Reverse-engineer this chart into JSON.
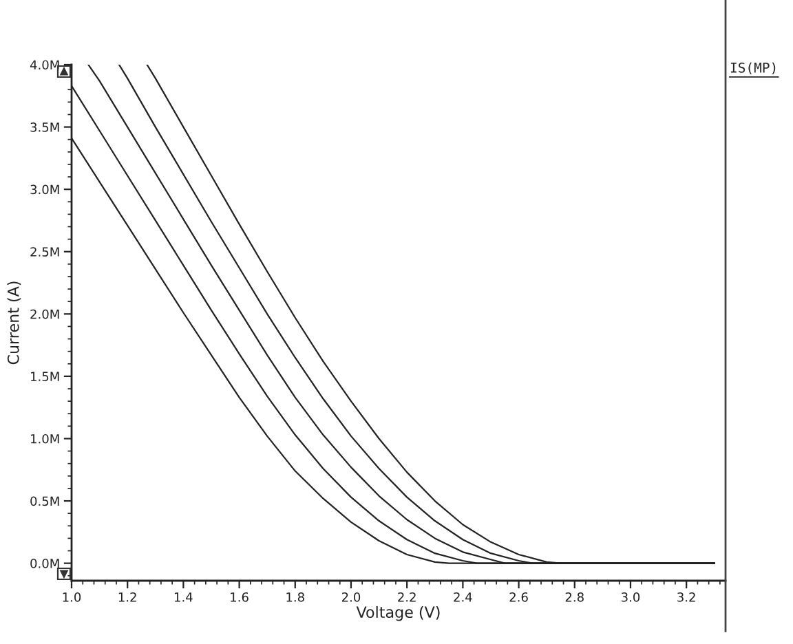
{
  "chart_data": {
    "type": "line",
    "xlabel": "Voltage (V)",
    "ylabel": "Current (A)",
    "legend_title": "IS(MP)",
    "xlim": [
      1.0,
      3.34
    ],
    "ylim": [
      -0.14,
      4.0
    ],
    "xticks": [
      {
        "value": 1.0,
        "label": "1.0"
      },
      1.2,
      1.4,
      1.6,
      1.8,
      {
        "value": 2.0,
        "label": "2.0"
      },
      2.2,
      2.4,
      2.6,
      2.8,
      {
        "value": 3.0,
        "label": "3.0"
      },
      3.2
    ],
    "yticks": [
      {
        "value": 0.0,
        "label": "0.0M"
      },
      {
        "value": 0.5,
        "label": "0.5M"
      },
      {
        "value": 1.0,
        "label": "1.0M"
      },
      {
        "value": 1.5,
        "label": "1.5M"
      },
      {
        "value": 2.0,
        "label": "2.0M"
      },
      {
        "value": 2.5,
        "label": "2.5M"
      },
      {
        "value": 3.0,
        "label": "3.0M"
      },
      {
        "value": 3.5,
        "label": "3.5M"
      },
      {
        "value": 4.0,
        "label": "4.0M"
      }
    ],
    "series": [
      {
        "color": "#222222",
        "x": [
          1.0,
          1.1,
          1.2,
          1.3,
          1.4,
          1.5,
          1.6,
          1.7,
          1.8,
          1.9,
          2.0,
          2.1,
          2.2,
          2.3,
          2.35,
          3.3
        ],
        "values": [
          3.41,
          3.06,
          2.71,
          2.36,
          2.01,
          1.67,
          1.33,
          1.02,
          0.74,
          0.52,
          0.33,
          0.18,
          0.07,
          0.01,
          0.0,
          0.0
        ]
      },
      {
        "color": "#222222",
        "x": [
          1.0,
          1.1,
          1.2,
          1.3,
          1.4,
          1.5,
          1.6,
          1.7,
          1.8,
          1.9,
          2.0,
          2.1,
          2.2,
          2.3,
          2.4,
          2.45,
          3.3
        ],
        "values": [
          3.83,
          3.47,
          3.11,
          2.75,
          2.39,
          2.03,
          1.68,
          1.34,
          1.03,
          0.76,
          0.53,
          0.34,
          0.19,
          0.08,
          0.02,
          0.0,
          0.0
        ]
      },
      {
        "color": "#222222",
        "x": [
          1.06,
          1.1,
          1.2,
          1.3,
          1.4,
          1.5,
          1.6,
          1.7,
          1.8,
          1.9,
          2.0,
          2.1,
          2.2,
          2.3,
          2.4,
          2.5,
          2.55,
          3.3
        ],
        "values": [
          4.0,
          3.87,
          3.5,
          3.13,
          2.76,
          2.39,
          2.03,
          1.67,
          1.33,
          1.03,
          0.77,
          0.54,
          0.35,
          0.2,
          0.09,
          0.03,
          0.0,
          0.0
        ]
      },
      {
        "color": "#222222",
        "x": [
          1.17,
          1.2,
          1.3,
          1.4,
          1.5,
          1.6,
          1.7,
          1.8,
          1.9,
          2.0,
          2.1,
          2.2,
          2.3,
          2.4,
          2.5,
          2.6,
          2.65,
          3.3
        ],
        "values": [
          4.0,
          3.89,
          3.5,
          3.12,
          2.74,
          2.37,
          2.0,
          1.65,
          1.32,
          1.02,
          0.76,
          0.53,
          0.34,
          0.19,
          0.08,
          0.02,
          0.0,
          0.0
        ]
      },
      {
        "color": "#222222",
        "x": [
          1.27,
          1.3,
          1.4,
          1.5,
          1.6,
          1.7,
          1.8,
          1.9,
          2.0,
          2.1,
          2.2,
          2.3,
          2.4,
          2.5,
          2.6,
          2.7,
          2.75,
          3.3
        ],
        "values": [
          4.0,
          3.89,
          3.5,
          3.11,
          2.72,
          2.34,
          1.97,
          1.62,
          1.3,
          1.0,
          0.73,
          0.5,
          0.31,
          0.17,
          0.07,
          0.01,
          0.0,
          0.0
        ]
      }
    ]
  }
}
